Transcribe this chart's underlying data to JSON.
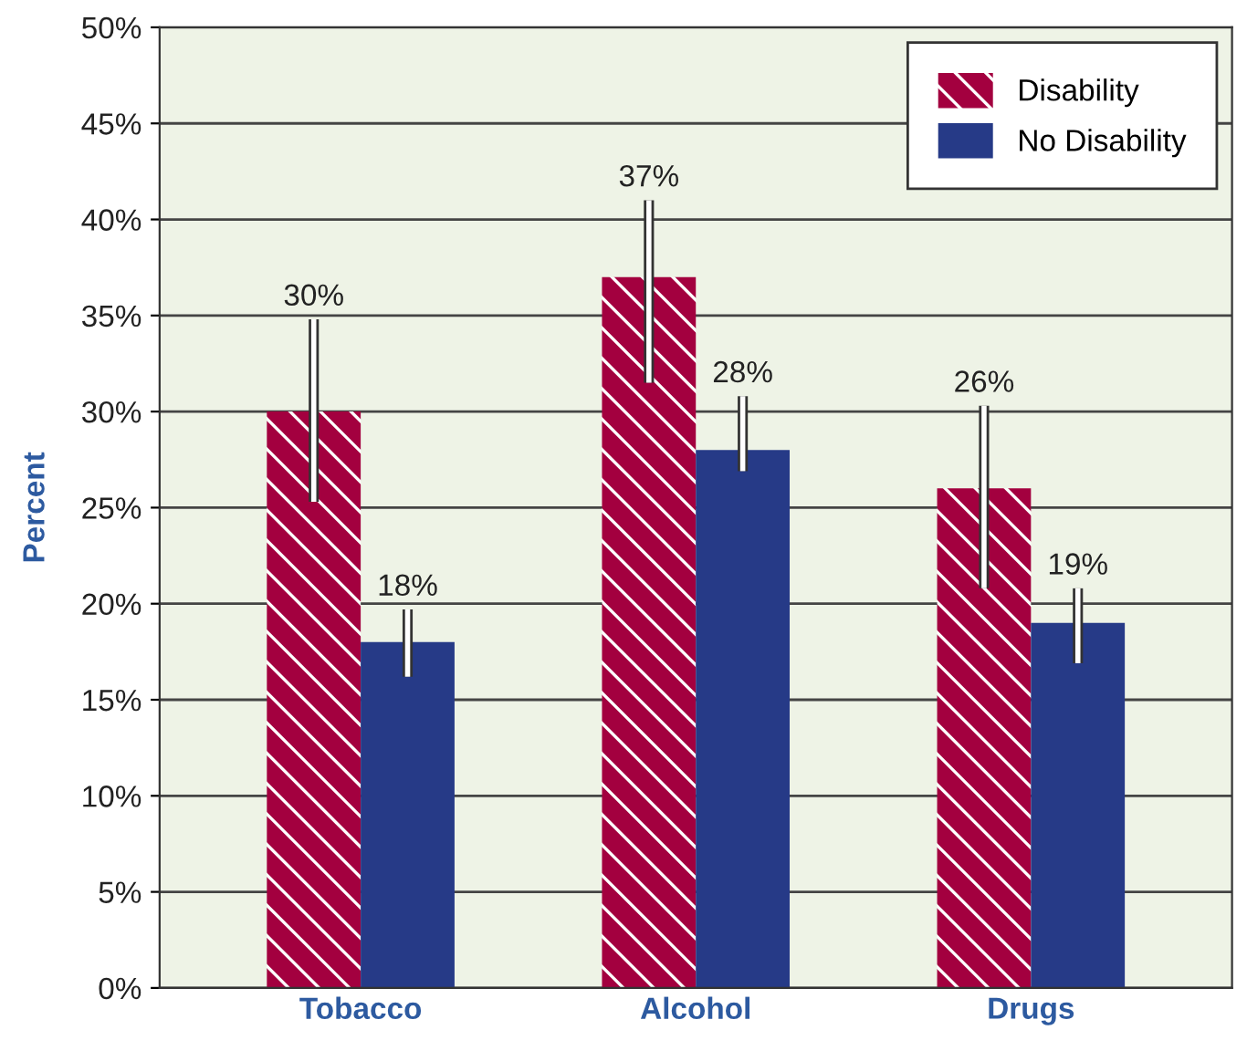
{
  "chart_data": {
    "type": "bar",
    "ylabel": "Percent",
    "categories": [
      "Tobacco",
      "Alcohol",
      "Drugs"
    ],
    "series": [
      {
        "name": "Disability",
        "color": "#a3003f",
        "values": [
          30,
          37,
          26
        ],
        "value_labels": [
          "30%",
          "37%",
          "26%"
        ],
        "errors": [
          [
            25.3,
            34.8
          ],
          [
            31.5,
            41.0
          ],
          [
            20.8,
            30.3
          ]
        ]
      },
      {
        "name": "No Disability",
        "color": "#263a87",
        "values": [
          18,
          28,
          19
        ],
        "value_labels": [
          "18%",
          "28%",
          "19%"
        ],
        "errors": [
          [
            16.2,
            19.7
          ],
          [
            26.9,
            30.8
          ],
          [
            16.9,
            20.8
          ]
        ]
      }
    ],
    "ylim": [
      0,
      50
    ],
    "yticks": [
      {
        "value": 0,
        "label": "0%"
      },
      {
        "value": 5,
        "label": "5%"
      },
      {
        "value": 10,
        "label": "10%"
      },
      {
        "value": 15,
        "label": "15%"
      },
      {
        "value": 20,
        "label": "20%"
      },
      {
        "value": 25,
        "label": "25%"
      },
      {
        "value": 30,
        "label": "30%"
      },
      {
        "value": 35,
        "label": "35%"
      },
      {
        "value": 40,
        "label": "40%"
      },
      {
        "value": 45,
        "label": "45%"
      },
      {
        "value": 50,
        "label": "50%"
      }
    ],
    "grid": "y",
    "legend": "top right"
  }
}
